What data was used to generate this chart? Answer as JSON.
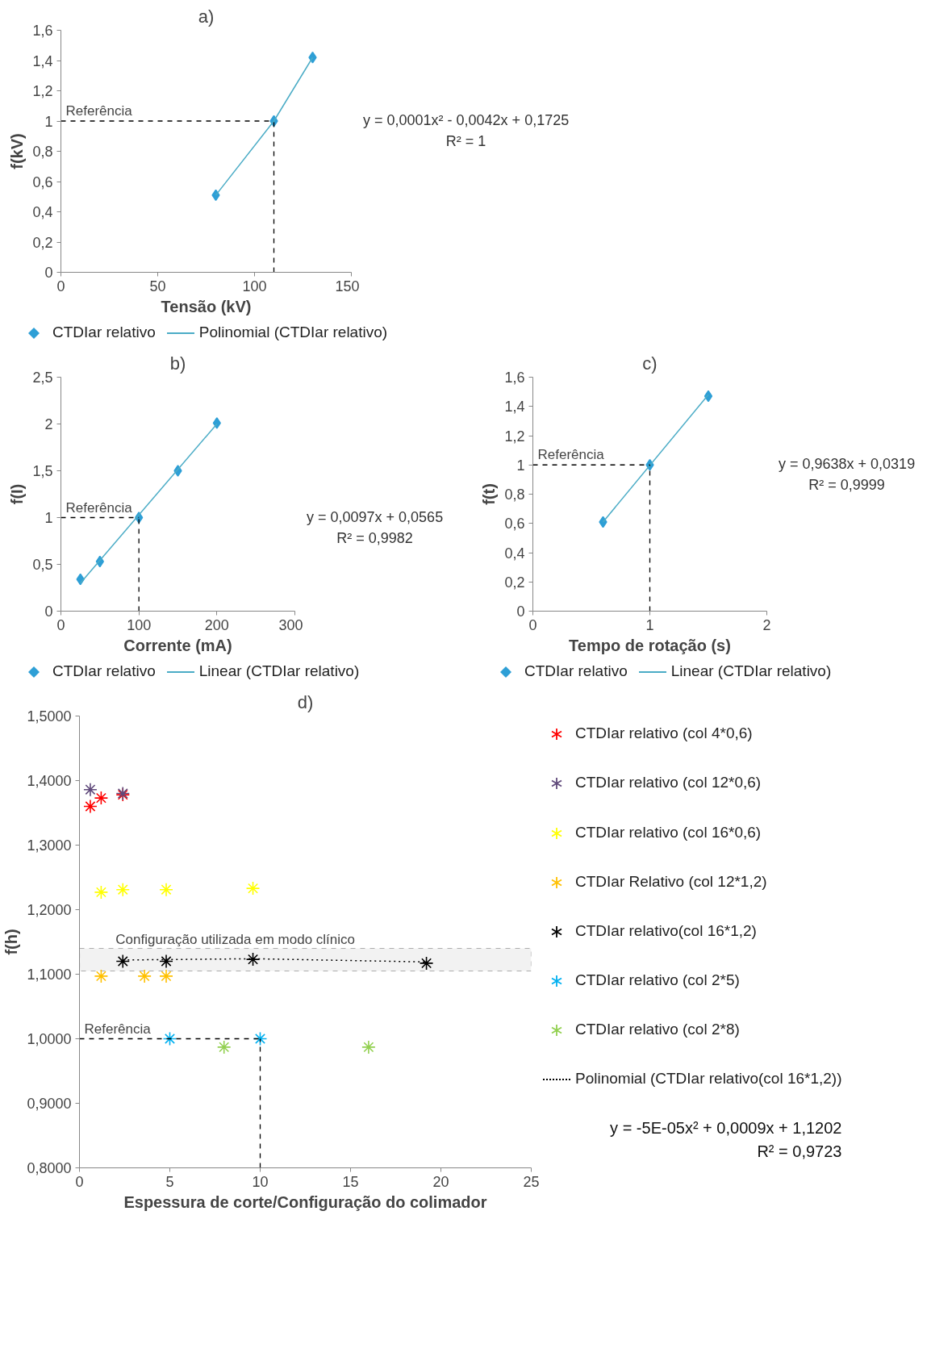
{
  "chart_data": [
    {
      "type": "scatter",
      "title": "a)",
      "xlabel": "Tensão (kV)",
      "ylabel": "f(kV)",
      "xlim": [
        0,
        150
      ],
      "xticks": [
        0,
        50,
        100,
        150
      ],
      "ylim": [
        0,
        1.6
      ],
      "yticks": [
        0,
        {
          "value": 0.2,
          "label": "0,2"
        },
        {
          "value": 0.4,
          "label": "0,4"
        },
        {
          "value": 0.6,
          "label": "0,6"
        },
        {
          "value": 0.8,
          "label": "0,8"
        },
        1,
        {
          "value": 1.2,
          "label": "1,2"
        },
        {
          "value": 1.4,
          "label": "1,4"
        },
        {
          "value": 1.6,
          "label": "1,6"
        }
      ],
      "series": [
        {
          "name": "CTDIar relativo",
          "color": "#2e9fd6",
          "marker": "diamond",
          "x": [
            80,
            110,
            130
          ],
          "values": [
            0.51,
            1.0,
            1.42
          ]
        },
        {
          "name": "Polinomial (CTDIar relativo)",
          "type": "line",
          "color": "#4bacc6",
          "marker": "none",
          "line_style": "solid",
          "x": [
            80,
            110,
            130
          ],
          "values": [
            0.51,
            1.0,
            1.42
          ]
        }
      ],
      "ref_lines": [
        {
          "axis": "y",
          "value": 1,
          "label": "Referência",
          "color": "#000000",
          "line_style": "dashed"
        },
        {
          "axis": "x",
          "value": 110,
          "label": null,
          "color": "#000000",
          "line_style": "dashed"
        }
      ],
      "annotations": [
        "y = 0,0001x² - 0,0042x + 0,1725",
        "R² = 1"
      ],
      "legend": "bottom",
      "grid": false
    },
    {
      "type": "scatter",
      "title": "b)",
      "xlabel": "Corrente (mA)",
      "ylabel": "f(I)",
      "xlim": [
        0,
        300
      ],
      "xticks": [
        0,
        100,
        200,
        300
      ],
      "ylim": [
        0,
        2.5
      ],
      "yticks": [
        0,
        {
          "value": 0.5,
          "label": "0,5"
        },
        1,
        {
          "value": 1.5,
          "label": "1,5"
        },
        2,
        {
          "value": 2.5,
          "label": "2,5"
        }
      ],
      "series": [
        {
          "name": "CTDIar relativo",
          "color": "#2e9fd6",
          "marker": "diamond",
          "x": [
            25,
            50,
            100,
            150,
            200
          ],
          "values": [
            0.34,
            0.53,
            1.0,
            1.5,
            2.01
          ]
        },
        {
          "name": "Linear (CTDIar relativo)",
          "type": "line",
          "color": "#4bacc6",
          "marker": "none",
          "line_style": "solid",
          "x": [
            25,
            200
          ],
          "values": [
            0.3,
            2.0
          ]
        }
      ],
      "ref_lines": [
        {
          "axis": "y",
          "value": 1,
          "label": "Referência",
          "color": "#000000",
          "line_style": "dashed"
        },
        {
          "axis": "x",
          "value": 100,
          "label": null,
          "color": "#000000",
          "line_style": "dashed"
        }
      ],
      "annotations": [
        "y = 0,0097x + 0,0565",
        "R² = 0,9982"
      ],
      "legend": "bottom",
      "grid": false
    },
    {
      "type": "scatter",
      "title": "c)",
      "xlabel": "Tempo de rotação (s)",
      "ylabel": "f(t)",
      "xlim": [
        0,
        2
      ],
      "xticks": [
        0,
        1,
        2
      ],
      "ylim": [
        0,
        1.6
      ],
      "yticks": [
        0,
        {
          "value": 0.2,
          "label": "0,2"
        },
        {
          "value": 0.4,
          "label": "0,4"
        },
        {
          "value": 0.6,
          "label": "0,6"
        },
        {
          "value": 0.8,
          "label": "0,8"
        },
        1,
        {
          "value": 1.2,
          "label": "1,2"
        },
        {
          "value": 1.4,
          "label": "1,4"
        },
        {
          "value": 1.6,
          "label": "1,6"
        }
      ],
      "series": [
        {
          "name": "CTDIar relativo",
          "color": "#2e9fd6",
          "marker": "diamond",
          "x": [
            0.6,
            1,
            1.5
          ],
          "values": [
            0.61,
            1.0,
            1.47
          ]
        },
        {
          "name": "Linear (CTDIar relativo)",
          "type": "line",
          "color": "#4bacc6",
          "marker": "none",
          "line_style": "solid",
          "x": [
            0.6,
            1.5
          ],
          "values": [
            0.61,
            1.48
          ]
        }
      ],
      "ref_lines": [
        {
          "axis": "y",
          "value": 1,
          "label": "Referência",
          "color": "#000000",
          "line_style": "dashed"
        },
        {
          "axis": "x",
          "value": 1,
          "label": null,
          "color": "#000000",
          "line_style": "dashed"
        }
      ],
      "annotations": [
        "y = 0,9638x + 0,0319",
        "R² = 0,9999"
      ],
      "legend": "bottom",
      "grid": false
    },
    {
      "type": "scatter",
      "title": "d)",
      "xlabel": "Espessura de corte/Configuração do colimador",
      "ylabel": "f(h)",
      "xlim": [
        0,
        25
      ],
      "xticks": [
        0,
        5,
        10,
        15,
        20,
        25
      ],
      "ylim": [
        0.8,
        1.5
      ],
      "yticks": [
        {
          "value": 0.8,
          "label": "0,8000"
        },
        {
          "value": 0.9,
          "label": "0,9000"
        },
        {
          "value": 1.0,
          "label": "1,0000"
        },
        {
          "value": 1.1,
          "label": "1,1000"
        },
        {
          "value": 1.2,
          "label": "1,2000"
        },
        {
          "value": 1.3,
          "label": "1,3000"
        },
        {
          "value": 1.4,
          "label": "1,4000"
        },
        {
          "value": 1.5,
          "label": "1,5000"
        }
      ],
      "series": [
        {
          "name": "CTDIar relativo (col 4*0,6)",
          "color": "#ff0000",
          "marker": "cross",
          "x": [
            0.6,
            1.2,
            2.4
          ],
          "values": [
            1.36,
            1.373,
            1.378
          ]
        },
        {
          "name": "CTDIar relativo (col 12*0,6)",
          "color": "#604a7b",
          "marker": "cross",
          "x": [
            0.6,
            2.4
          ],
          "values": [
            1.386,
            1.38
          ]
        },
        {
          "name": "CTDIar relativo (col 16*0,6)",
          "color": "#ffff00",
          "marker": "cross",
          "x": [
            1.2,
            2.4,
            4.8,
            9.6
          ],
          "values": [
            1.227,
            1.231,
            1.231,
            1.233
          ]
        },
        {
          "name": "CTDIar Relativo (col 12*1,2)",
          "color": "#ffc000",
          "marker": "cross",
          "x": [
            1.2,
            3.6,
            4.8
          ],
          "values": [
            1.097,
            1.097,
            1.097
          ]
        },
        {
          "name": "CTDIar relativo(col 16*1,2)",
          "color": "#000000",
          "marker": "cross",
          "x": [
            2.4,
            4.8,
            9.6,
            19.2
          ],
          "values": [
            1.12,
            1.12,
            1.123,
            1.117
          ]
        },
        {
          "name": "CTDIar relativo (col 2*5)",
          "color": "#00b0f0",
          "marker": "cross",
          "x": [
            5,
            10
          ],
          "values": [
            1.0,
            1.0
          ]
        },
        {
          "name": "CTDIar relativo (col 2*8)",
          "color": "#92d050",
          "marker": "cross",
          "x": [
            8,
            16
          ],
          "values": [
            0.987,
            0.987
          ]
        },
        {
          "name": "Polinomial (CTDIar relativo(col 16*1,2))",
          "type": "line",
          "color": "#000000",
          "marker": "none",
          "line_style": "dotted",
          "x": [
            2.4,
            9.6,
            19.2
          ],
          "values": [
            1.122,
            1.124,
            1.119
          ]
        }
      ],
      "ref_lines": [
        {
          "axis": "y",
          "value": 1,
          "label": "Referência",
          "color": "#000000",
          "line_style": "dashed"
        },
        {
          "axis": "x",
          "value": 10,
          "label": null,
          "color": "#000000",
          "line_style": "dashed"
        }
      ],
      "bands": [
        {
          "axis": "y",
          "from": 1.105,
          "to": 1.14,
          "label": "Configuração utilizada em modo clínico",
          "color": "#000000"
        }
      ],
      "annotations": [
        "y = -5E-05x² + 0,0009x + 1,1202",
        "R² = 0,9723"
      ],
      "legend": "right",
      "grid": false
    }
  ]
}
